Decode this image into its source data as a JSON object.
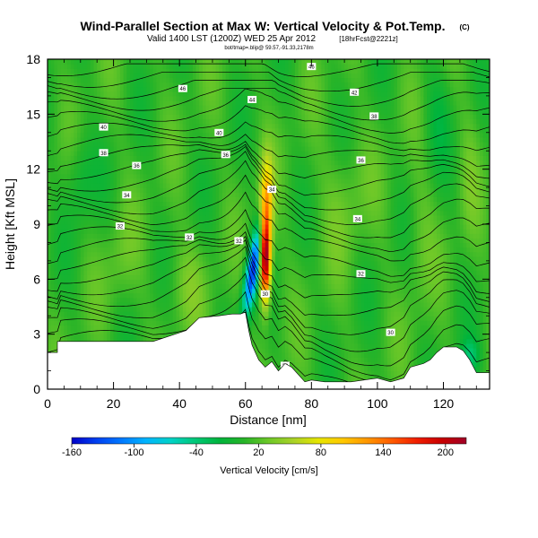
{
  "chart_data": {
    "type": "heatmap",
    "title": "Wind-Parallel Section at Max W: Vertical Velocity & Pot.Temp.",
    "title_mark": "(C)",
    "subtitle": "Valid 1400 LST (1200Z) WED 25 Apr 2012",
    "subtitle_tag": "[18hrFcst@2221z]",
    "subtitle2": "bot/tmap=.blip@ 59.57,-91.33,2178m",
    "xlabel": "Distance [nm]",
    "ylabel": "Height [Kft MSL]",
    "xlim": [
      0,
      134
    ],
    "ylim": [
      0,
      18
    ],
    "xticks": [
      0,
      20,
      40,
      60,
      80,
      100,
      120
    ],
    "yticks": [
      0,
      3,
      6,
      9,
      12,
      15,
      18
    ],
    "colorbar": {
      "label": "Vertical Velocity [cm/s]",
      "range": [
        -160,
        220
      ],
      "ticks": [
        -160,
        -100,
        -40,
        20,
        80,
        140,
        200
      ],
      "colors": [
        "#0000c8",
        "#0040f0",
        "#0078ff",
        "#00b4ff",
        "#00d2c8",
        "#00c878",
        "#00b43c",
        "#28b428",
        "#6ec828",
        "#aad228",
        "#e6e600",
        "#ffc800",
        "#ff9600",
        "#ff5a00",
        "#f01e00",
        "#c80000",
        "#a00028"
      ]
    },
    "terrain": {
      "x_nm": [
        0,
        3,
        3,
        12,
        32,
        42,
        46,
        52,
        56,
        58.5,
        60,
        61,
        62,
        64,
        66,
        68,
        70,
        72,
        74,
        78,
        80,
        84,
        92,
        100,
        104,
        108,
        110,
        114,
        116,
        118,
        120,
        124,
        126,
        128,
        130,
        134
      ],
      "height_kft": [
        2,
        2,
        2.6,
        2.6,
        2.6,
        3.2,
        3.9,
        4.0,
        4.1,
        4.1,
        4.2,
        3.2,
        2.4,
        1.6,
        1.2,
        1.5,
        1.0,
        1.4,
        1.2,
        0.4,
        0.5,
        0.4,
        0.4,
        0.6,
        0.4,
        0.6,
        1.2,
        1.4,
        1.6,
        2.0,
        2.3,
        2.3,
        2.1,
        1.6,
        0.9,
        0.9
      ]
    },
    "isentropes_kelvin": [
      300,
      302,
      304,
      306,
      308,
      310,
      312,
      314,
      316,
      318,
      320,
      322,
      324,
      326,
      328,
      330,
      332,
      334,
      336,
      338,
      340,
      342,
      344,
      346,
      348
    ],
    "isentrope_labels": [
      {
        "text": "46",
        "x_nm": 80,
        "y_kft": 17.6
      },
      {
        "text": "46",
        "x_nm": 41,
        "y_kft": 16.4
      },
      {
        "text": "44",
        "x_nm": 62,
        "y_kft": 15.8
      },
      {
        "text": "42",
        "x_nm": 93,
        "y_kft": 16.2
      },
      {
        "text": "40",
        "x_nm": 17,
        "y_kft": 14.3
      },
      {
        "text": "40",
        "x_nm": 52,
        "y_kft": 14.0
      },
      {
        "text": "38",
        "x_nm": 99,
        "y_kft": 14.9
      },
      {
        "text": "38",
        "x_nm": 17,
        "y_kft": 12.9
      },
      {
        "text": "36",
        "x_nm": 27,
        "y_kft": 12.2
      },
      {
        "text": "36",
        "x_nm": 54,
        "y_kft": 12.8
      },
      {
        "text": "36",
        "x_nm": 95,
        "y_kft": 12.5
      },
      {
        "text": "34",
        "x_nm": 24,
        "y_kft": 10.6
      },
      {
        "text": "34",
        "x_nm": 68,
        "y_kft": 10.9
      },
      {
        "text": "34",
        "x_nm": 94,
        "y_kft": 9.3
      },
      {
        "text": "32",
        "x_nm": 22,
        "y_kft": 8.9
      },
      {
        "text": "32",
        "x_nm": 43,
        "y_kft": 8.3
      },
      {
        "text": "32",
        "x_nm": 58,
        "y_kft": 8.1
      },
      {
        "text": "32",
        "x_nm": 95,
        "y_kft": 6.3
      },
      {
        "text": "30",
        "x_nm": 66,
        "y_kft": 5.2
      },
      {
        "text": "30",
        "x_nm": 104,
        "y_kft": 3.1
      },
      {
        "text": "28",
        "x_nm": 72,
        "y_kft": 1.3
      }
    ]
  }
}
